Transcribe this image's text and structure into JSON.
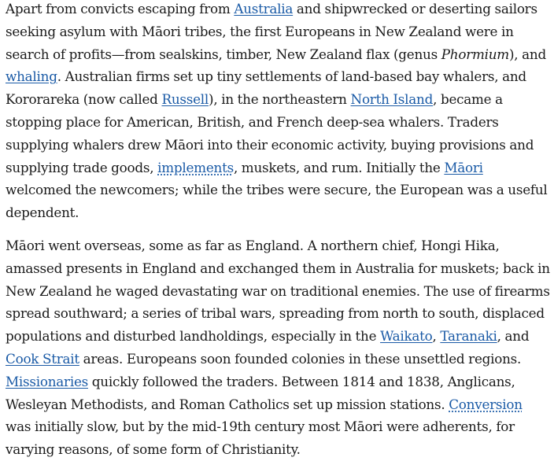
{
  "p1": {
    "t1": "Apart from convicts escaping from ",
    "l_australia": "Australia",
    "t2": " and shipwrecked or deserting sailors seeking asylum with Māori tribes, the first Europeans in New Zealand were in search of profits—from sealskins, timber, New Zealand flax (genus ",
    "genus": "Phormium",
    "t3": "), and ",
    "l_whaling": "whaling",
    "t4": ". Australian firms set up tiny settlements of land-based bay whalers, and Kororareka (now called ",
    "l_russell": "Russell",
    "t5": "), in the northeastern ",
    "l_north_island": "North Island",
    "t6": ", became a stopping place for American, British, and French deep-sea whalers. Traders supplying whalers drew Māori into their economic activity, buying provisions and supplying trade goods, ",
    "l_implements": "implements",
    "t7": ", muskets, and rum. Initially the ",
    "l_maori": "Māori",
    "t8": " welcomed the newcomers; while the tribes were secure, the European was a useful dependent."
  },
  "p2": {
    "t1": "Māori went overseas, some as far as England. A northern chief, Hongi Hika, amassed presents in England and exchanged them in Australia for muskets; back in New Zealand he waged devastating war on traditional enemies. The use of firearms spread southward; a series of tribal wars, spreading from north to south, displaced populations and disturbed landholdings, especially in the ",
    "l_waikato": "Waikato",
    "t2": ", ",
    "l_taranaki": "Taranaki",
    "t3": ", and ",
    "l_cook_strait": "Cook Strait",
    "t4": " areas. Europeans soon founded colonies in these unsettled regions. ",
    "l_missionaries": "Missionaries",
    "t5": " quickly followed the traders. Between 1814 and 1838, Anglicans, Wesleyan Methodists, and Roman Catholics set up mission stations. ",
    "l_conversion": "Conversion",
    "t6": " was initially slow, but by the mid-19th century most Māori were adherents, for varying reasons, of some form of Christianity."
  },
  "colors": {
    "link": "#1a5aa6",
    "text": "#1a1a1a"
  }
}
